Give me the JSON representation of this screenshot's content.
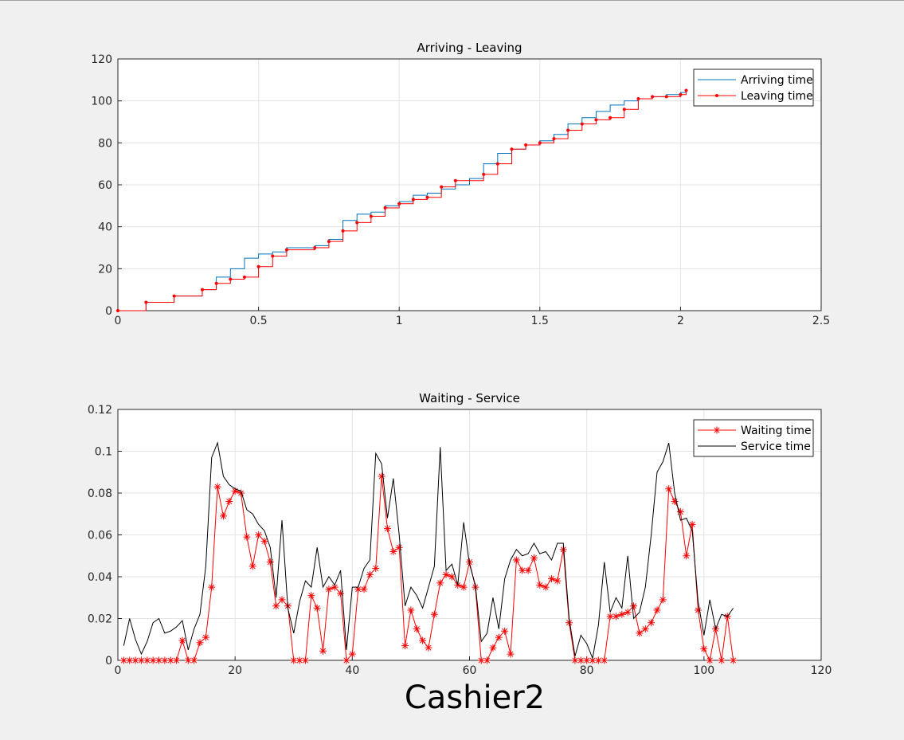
{
  "caption": "Cashier2",
  "chart_data": [
    {
      "type": "line",
      "title": "Arriving - Leaving",
      "xlim": [
        0,
        2.5
      ],
      "ylim": [
        0,
        120
      ],
      "xticks": [
        0,
        0.5,
        1,
        1.5,
        2,
        2.5
      ],
      "yticks": [
        0,
        20,
        40,
        60,
        80,
        100,
        120
      ],
      "grid": true,
      "legend": "upper right",
      "step": true,
      "series": [
        {
          "name": "Arriving time",
          "color": "#0072bd",
          "marker": "none",
          "x": [
            0,
            0.1,
            0.2,
            0.3,
            0.35,
            0.4,
            0.45,
            0.5,
            0.55,
            0.6,
            0.7,
            0.75,
            0.8,
            0.85,
            0.9,
            0.95,
            1.0,
            1.05,
            1.1,
            1.15,
            1.2,
            1.25,
            1.3,
            1.35,
            1.4,
            1.45,
            1.5,
            1.55,
            1.6,
            1.65,
            1.7,
            1.75,
            1.8,
            1.85,
            1.9,
            1.95,
            2.0,
            2.02
          ],
          "values": [
            0,
            4,
            7,
            10,
            16,
            20,
            25,
            27,
            28,
            30,
            31,
            34,
            43,
            46,
            47,
            50,
            52,
            55,
            56,
            58,
            60,
            63,
            70,
            75,
            77,
            79,
            81,
            84,
            89,
            92,
            95,
            98,
            100,
            101,
            102,
            103,
            104,
            105
          ]
        },
        {
          "name": "Leaving time",
          "color": "#ff0000",
          "marker": "dot",
          "x": [
            0,
            0.1,
            0.2,
            0.3,
            0.35,
            0.4,
            0.45,
            0.5,
            0.55,
            0.6,
            0.7,
            0.75,
            0.8,
            0.85,
            0.9,
            0.95,
            1.0,
            1.05,
            1.1,
            1.15,
            1.2,
            1.3,
            1.35,
            1.4,
            1.45,
            1.5,
            1.55,
            1.6,
            1.65,
            1.7,
            1.75,
            1.8,
            1.85,
            1.9,
            1.95,
            2.0,
            2.02
          ],
          "values": [
            0,
            4,
            7,
            10,
            13,
            15,
            16,
            21,
            26,
            29,
            30,
            33,
            38,
            42,
            45,
            49,
            51,
            53,
            54,
            59,
            62,
            65,
            70,
            77,
            79,
            80,
            82,
            86,
            89,
            91,
            92,
            96,
            101,
            102,
            102,
            103,
            105
          ]
        }
      ]
    },
    {
      "type": "line",
      "title": "Waiting - Service",
      "xlim": [
        0,
        120
      ],
      "ylim": [
        0,
        0.12
      ],
      "xticks": [
        0,
        20,
        40,
        60,
        80,
        100,
        120
      ],
      "yticks": [
        0,
        0.02,
        0.04,
        0.06,
        0.08,
        0.1,
        0.12
      ],
      "grid": true,
      "legend": "upper right",
      "step": false,
      "series": [
        {
          "name": "Waiting time",
          "color": "#ff0000",
          "marker": "asterisk",
          "x": [
            1,
            2,
            3,
            4,
            5,
            6,
            7,
            8,
            9,
            10,
            11,
            12,
            13,
            14,
            15,
            16,
            17,
            18,
            19,
            20,
            21,
            22,
            23,
            24,
            25,
            26,
            27,
            28,
            29,
            30,
            31,
            32,
            33,
            34,
            35,
            36,
            37,
            38,
            39,
            40,
            41,
            42,
            43,
            44,
            45,
            46,
            47,
            48,
            49,
            50,
            51,
            52,
            53,
            54,
            55,
            56,
            57,
            58,
            59,
            60,
            61,
            62,
            63,
            64,
            65,
            66,
            67,
            68,
            69,
            70,
            71,
            72,
            73,
            74,
            75,
            76,
            77,
            78,
            79,
            80,
            81,
            82,
            83,
            84,
            85,
            86,
            87,
            88,
            89,
            90,
            91,
            92,
            93,
            94,
            95,
            96,
            97,
            98,
            99,
            100,
            101,
            102,
            103,
            104,
            105
          ],
          "values": [
            0,
            0,
            0,
            0,
            0,
            0,
            0,
            0,
            0,
            0,
            0.0095,
            0,
            0,
            0.0085,
            0.011,
            0.035,
            0.083,
            0.069,
            0.076,
            0.081,
            0.08,
            0.059,
            0.045,
            0.06,
            0.057,
            0.047,
            0.026,
            0.029,
            0.026,
            0,
            0,
            0,
            0.031,
            0.025,
            0.0045,
            0.034,
            0.035,
            0.032,
            0,
            0.003,
            0.034,
            0.034,
            0.041,
            0.044,
            0.088,
            0.063,
            0.052,
            0.054,
            0.007,
            0.024,
            0.015,
            0.0095,
            0.006,
            0.022,
            0.037,
            0.041,
            0.04,
            0.036,
            0.035,
            0.047,
            0.035,
            0,
            0,
            0.006,
            0.011,
            0.014,
            0.003,
            0.048,
            0.043,
            0.043,
            0.049,
            0.036,
            0.035,
            0.039,
            0.038,
            0.053,
            0.018,
            0,
            0,
            0,
            0,
            0,
            0,
            0.021,
            0.021,
            0.022,
            0.023,
            0.026,
            0.013,
            0.015,
            0.018,
            0.024,
            0.029,
            0.082,
            0.076,
            0.071,
            0.05,
            0.065,
            0.024,
            0.0055,
            0,
            0.015,
            0,
            0.021,
            0
          ]
        },
        {
          "name": "Service time",
          "color": "#000000",
          "marker": "none",
          "x": [
            1,
            2,
            3,
            4,
            5,
            6,
            7,
            8,
            9,
            10,
            11,
            12,
            13,
            14,
            15,
            16,
            17,
            18,
            19,
            20,
            21,
            22,
            23,
            24,
            25,
            26,
            27,
            28,
            29,
            30,
            31,
            32,
            33,
            34,
            35,
            36,
            37,
            38,
            39,
            40,
            41,
            42,
            43,
            44,
            45,
            46,
            47,
            48,
            49,
            50,
            51,
            52,
            53,
            54,
            55,
            56,
            57,
            58,
            59,
            60,
            61,
            62,
            63,
            64,
            65,
            66,
            67,
            68,
            69,
            70,
            71,
            72,
            73,
            74,
            75,
            76,
            77,
            78,
            79,
            80,
            81,
            82,
            83,
            84,
            85,
            86,
            87,
            88,
            89,
            90,
            91,
            92,
            93,
            94,
            95,
            96,
            97,
            98,
            99,
            100,
            101,
            102,
            103,
            104,
            105
          ],
          "values": [
            0.007,
            0.02,
            0.01,
            0.003,
            0.009,
            0.018,
            0.02,
            0.013,
            0.014,
            0.016,
            0.019,
            0.005,
            0.015,
            0.022,
            0.045,
            0.097,
            0.104,
            0.088,
            0.084,
            0.082,
            0.081,
            0.072,
            0.07,
            0.065,
            0.062,
            0.054,
            0.03,
            0.067,
            0.025,
            0.013,
            0.028,
            0.038,
            0.035,
            0.054,
            0.035,
            0.04,
            0.036,
            0.043,
            0.005,
            0.035,
            0.035,
            0.044,
            0.048,
            0.099,
            0.094,
            0.068,
            0.087,
            0.06,
            0.026,
            0.035,
            0.031,
            0.025,
            0.035,
            0.045,
            0.102,
            0.043,
            0.046,
            0.036,
            0.066,
            0.046,
            0.036,
            0.009,
            0.013,
            0.03,
            0.015,
            0.039,
            0.048,
            0.053,
            0.05,
            0.051,
            0.056,
            0.051,
            0.052,
            0.048,
            0.056,
            0.056,
            0.02,
            0.002,
            0.012,
            0.008,
            0.001,
            0.017,
            0.047,
            0.023,
            0.03,
            0.025,
            0.05,
            0.02,
            0.023,
            0.035,
            0.06,
            0.09,
            0.095,
            0.104,
            0.08,
            0.067,
            0.068,
            0.062,
            0.028,
            0.012,
            0.029,
            0.015,
            0.022,
            0.021,
            0.025
          ]
        }
      ]
    }
  ]
}
